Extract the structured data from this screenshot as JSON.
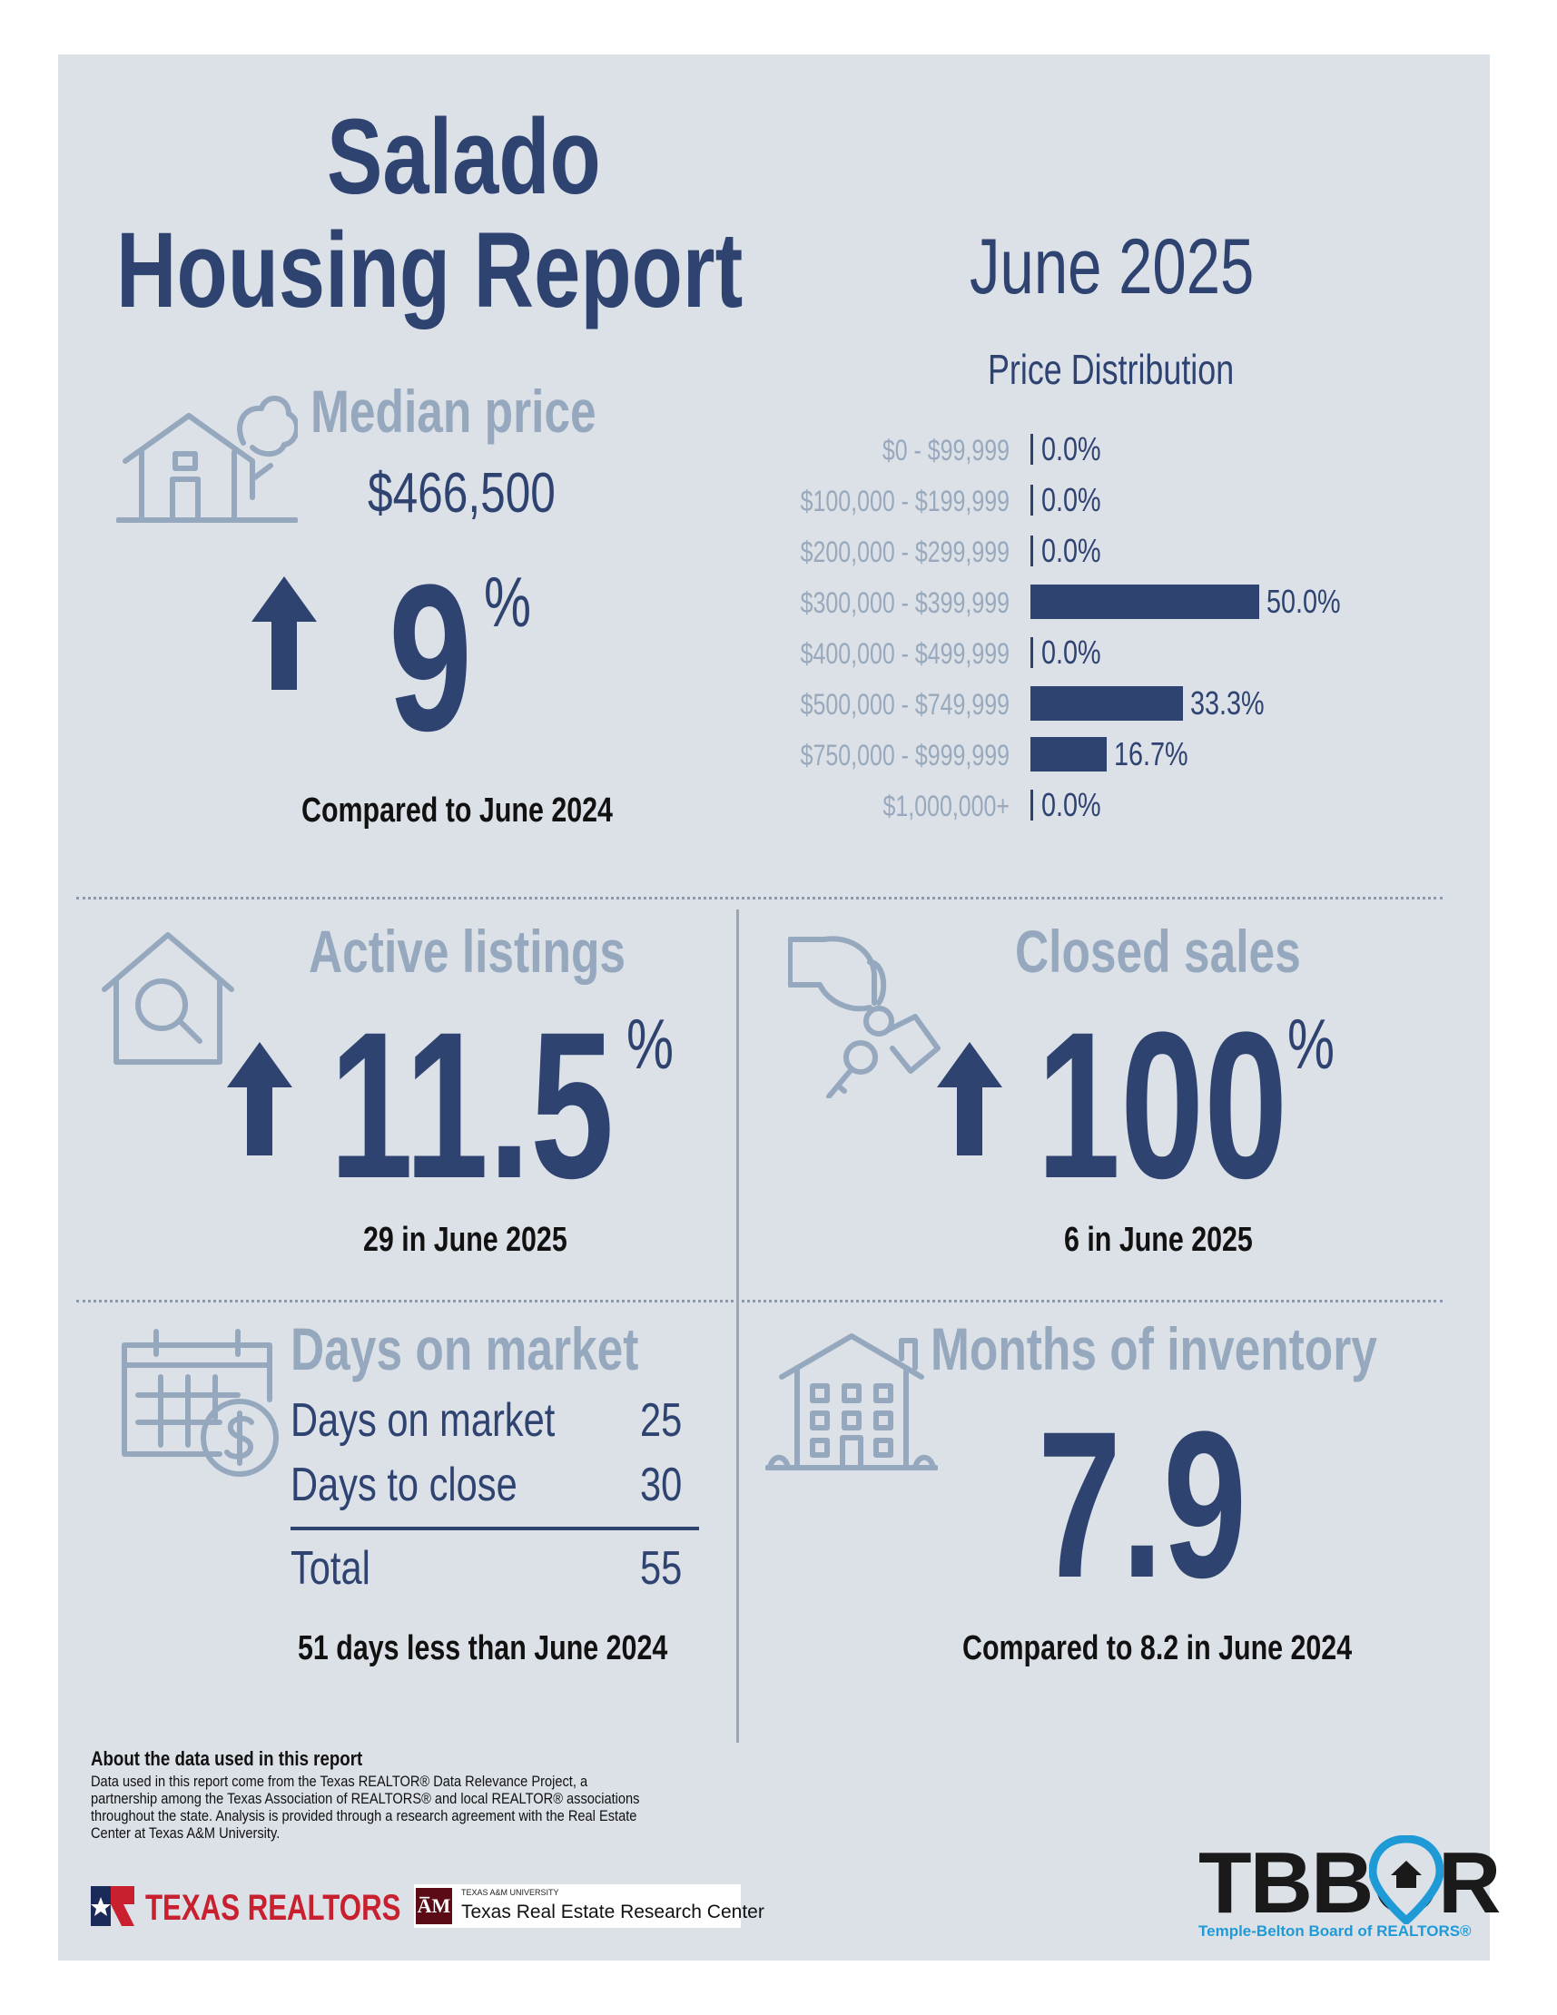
{
  "header": {
    "title_line1": "Salado",
    "title_line2": "Housing Report",
    "period": "June 2025"
  },
  "median_price": {
    "heading": "Median price",
    "value": "$466,500",
    "change": "9",
    "unit": "%",
    "direction": "up",
    "note": "Compared to June 2024",
    "icon": "house-with-tree-icon"
  },
  "price_distribution": {
    "title": "Price Distribution",
    "chart_data": {
      "type": "bar",
      "orientation": "horizontal",
      "title": "Price Distribution",
      "categories": [
        "$0 - $99,999",
        "$100,000 - $199,999",
        "$200,000 - $299,999",
        "$300,000 - $399,999",
        "$400,000 - $499,999",
        "$500,000 - $749,999",
        "$750,000 - $999,999",
        "$1,000,000+"
      ],
      "values": [
        0.0,
        0.0,
        0.0,
        50.0,
        0.0,
        33.3,
        16.7,
        0.0
      ],
      "value_labels": [
        "0.0%",
        "0.0%",
        "0.0%",
        "50.0%",
        "0.0%",
        "33.3%",
        "16.7%",
        "0.0%"
      ],
      "xlim": [
        0,
        50
      ],
      "grid": false,
      "bar_color": "#2f4371"
    }
  },
  "active_listings": {
    "heading": "Active listings",
    "change": "11.5",
    "unit": "%",
    "direction": "up",
    "note": "29 in June 2025",
    "icon": "house-magnifier-icon"
  },
  "closed_sales": {
    "heading": "Closed sales",
    "change": "100",
    "unit": "%",
    "direction": "up",
    "note": "6 in June 2025",
    "icon": "hand-keys-icon"
  },
  "days_on_market": {
    "heading": "Days on market",
    "rows": [
      {
        "label": "Days on market",
        "value": "25"
      },
      {
        "label": "Days to close",
        "value": "30"
      }
    ],
    "total_label": "Total",
    "total_value": "55",
    "note": "51 days less than June 2024",
    "icon": "calendar-dollar-icon"
  },
  "months_inventory": {
    "heading": "Months of inventory",
    "value": "7.9",
    "note": "Compared to 8.2 in June 2024",
    "icon": "apartment-building-icon"
  },
  "about": {
    "heading": "About the data used in this report",
    "text": "Data used in this report come from the Texas REALTOR® Data Relevance Project, a partnership among the Texas Association of REALTORS® and local REALTOR® associations throughout the state. Analysis is provided through a research agreement with the Real Estate Center at Texas A&M University."
  },
  "logos": {
    "texas_realtors": "TEXAS REALTORS",
    "tamu_small": "TEXAS A&M UNIVERSITY",
    "tamu_center": "Texas Real Estate Research Center",
    "tbbor": "TBBOR",
    "tbbor_sub": "Temple-Belton Board of REALTORS®"
  },
  "colors": {
    "navy": "#2f4371",
    "grey_heading": "#95a8bd",
    "panel_bg": "#dce1e8",
    "tbbor_blue": "#1e9bd7",
    "texas_red": "#c8202f"
  }
}
